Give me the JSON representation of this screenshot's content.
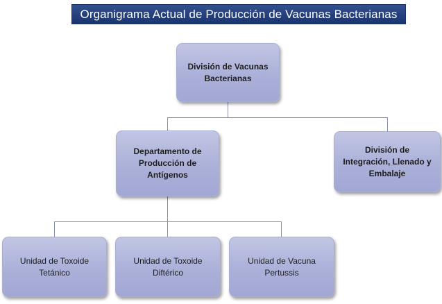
{
  "title": "Organigrama Actual de Producción de Vacunas Bacterianas",
  "nodes": {
    "root": "División de Vacunas\nBacterianas",
    "dept_antigenos": "Departamento de\nProducción de\nAntígenos",
    "div_integracion": "División de\nIntegración, Llenado y\nEmbalaje",
    "unit_tetanico": "Unidad de Toxoide\nTetánico",
    "unit_difterico": "Unidad de Toxoide\nDiftérico",
    "unit_pertussis": "Unidad de Vacuna\nPertussis"
  },
  "colors": {
    "title_bg": "#24407c",
    "node_fill": "#aab0d8",
    "connector": "#8a8fa8"
  }
}
